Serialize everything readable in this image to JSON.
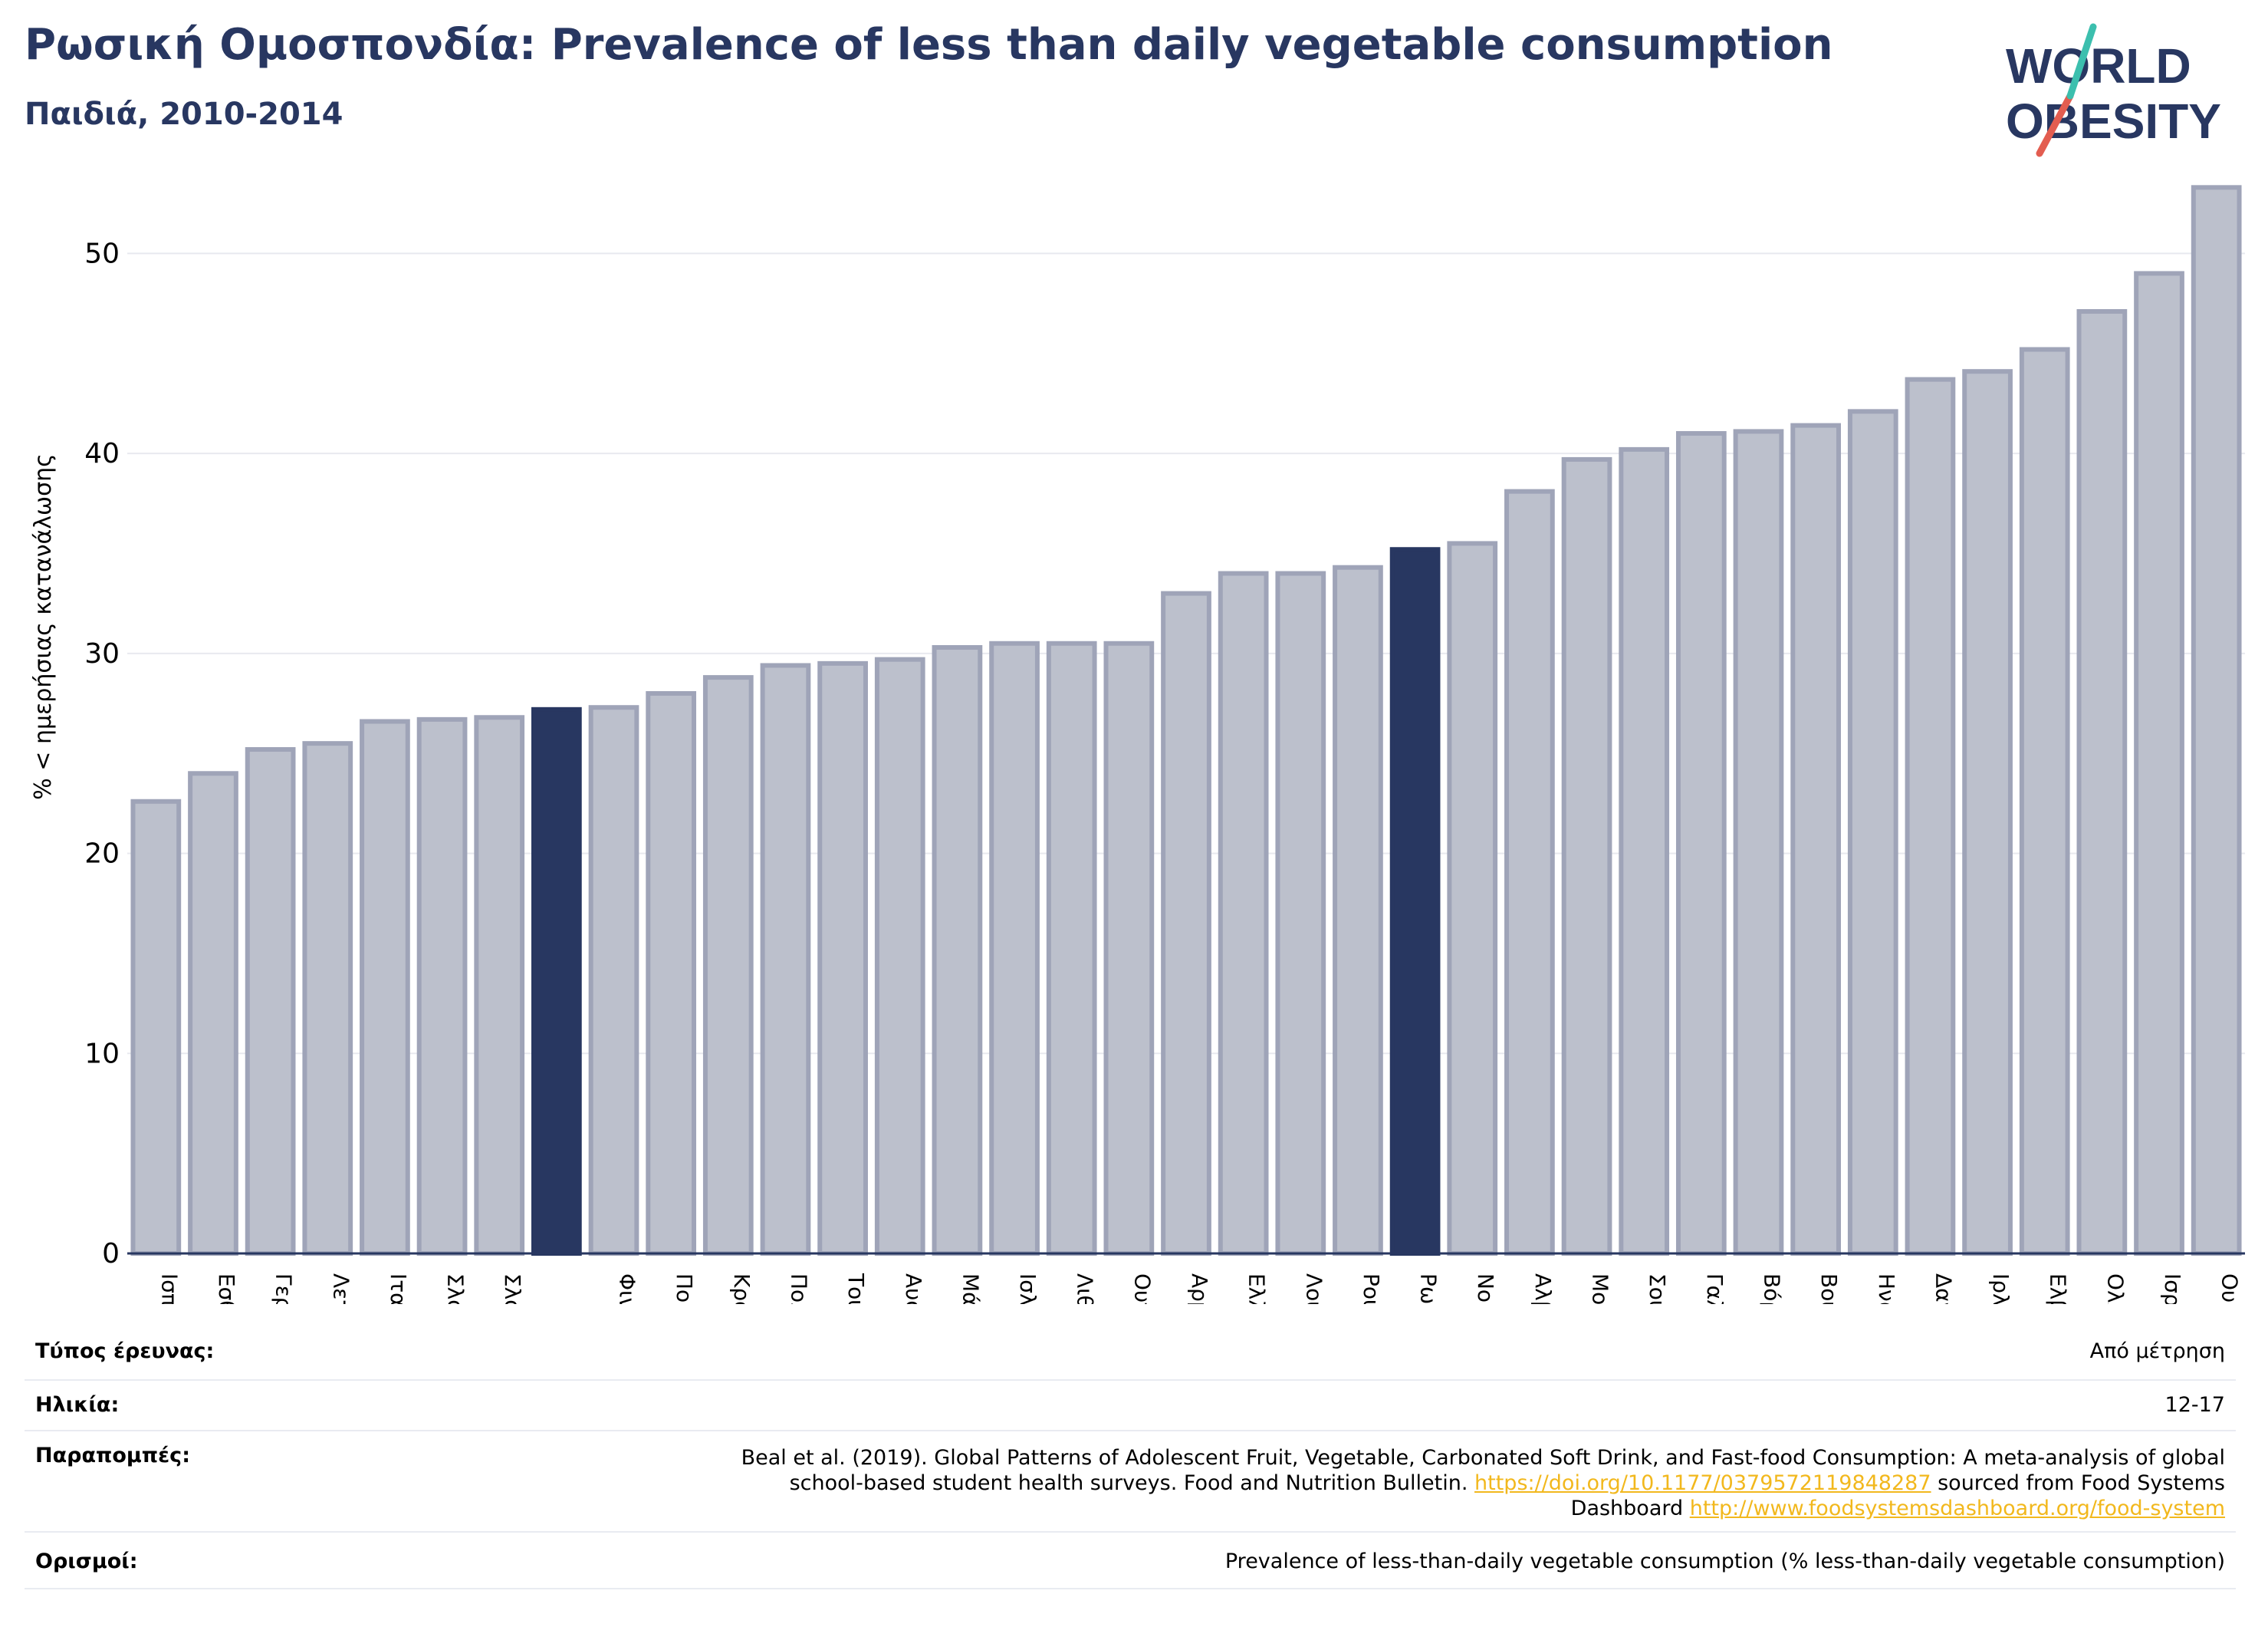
{
  "header": {
    "title": "Ρωσική Ομοσπονδία: Prevalence of less than daily vegetable consumption",
    "subtitle": "Παιδιά, 2010-2014",
    "logo_text_line1": "WORLD",
    "logo_text_line2": "OBESITY"
  },
  "colors": {
    "highlight": "#283761",
    "bar_fill": "#bcc0cc",
    "bar_stroke": "#9fa4b8",
    "brand_teal": "#3cbfae",
    "brand_red": "#e35d50"
  },
  "chart_data": {
    "type": "bar",
    "title": "Ρωσική Ομοσπονδία: Prevalence of less than daily vegetable consumption",
    "subtitle": "Παιδιά, 2010-2014",
    "ylabel": "% < ημερήσιας κατανάλωσης",
    "xlabel": "",
    "ylim": [
      0,
      55
    ],
    "yticks": [
      0,
      10,
      20,
      30,
      40,
      50
    ],
    "grid": true,
    "categories": [
      "Ισπανία",
      "Εσθονία",
      "Γερμανία",
      "Λετονία",
      "Ιταλία",
      "Σλοβακία",
      "Σλοβενία",
      "",
      "Φινλανδία",
      "Πορτογαλία",
      "Κροατία",
      "Πολωνία",
      "Τουρκία",
      "Αυστρία",
      "Μάλτα",
      "Ισλανδία",
      "Λιθουανία",
      "Ουγγαρία",
      "Αρμενία",
      "Ελλάδα",
      "Λουξεμβούργο",
      "Ρουμανία",
      "Ρωσική Ομοσπονδία",
      "Νορβηγία",
      "Αλβανία",
      "Μολδαβία",
      "Σουηδία",
      "Γαλλία",
      "Βόρεια Μακεδονία",
      "Βουλγαρία",
      "Ηνωμένο Βασίλειο",
      "Δανία",
      "Ιρλανδία",
      "Ελβετία",
      "Ολλανδία",
      "Ισραήλ",
      "Ουκρανία"
    ],
    "values": [
      22.6,
      24.0,
      25.2,
      25.5,
      26.6,
      26.7,
      26.8,
      27.2,
      27.3,
      28.0,
      28.8,
      29.4,
      29.5,
      29.7,
      30.3,
      30.5,
      30.5,
      30.5,
      33.0,
      34.0,
      34.0,
      34.3,
      35.2,
      35.5,
      38.1,
      39.7,
      40.2,
      41.0,
      41.1,
      41.4,
      42.1,
      43.7,
      44.1,
      45.2,
      47.1,
      49.0,
      53.3
    ],
    "highlighted_indices": [
      7,
      22
    ]
  },
  "meta": {
    "survey_type_label": "Τύπος έρευνας:",
    "survey_type_value": "Από μέτρηση",
    "age_label": "Ηλικία:",
    "age_value": "12-17",
    "refs_label": "Παραπομπές:",
    "refs_text_1": "Beal et al. (2019). Global Patterns of Adolescent Fruit, Vegetable, Carbonated Soft Drink, and Fast-food Consumption: A meta-analysis of global school-based student health surveys. Food and Nutrition Bulletin. ",
    "refs_link_1": "https://doi.org/10.1177/0379572119848287",
    "refs_text_2": " sourced from Food Systems Dashboard ",
    "refs_link_2": "http://www.foodsystemsdashboard.org/food-system",
    "defs_label": "Ορισμοί:",
    "defs_value": "Prevalence of less-than-daily vegetable consumption (% less-than-daily vegetable consumption)"
  }
}
